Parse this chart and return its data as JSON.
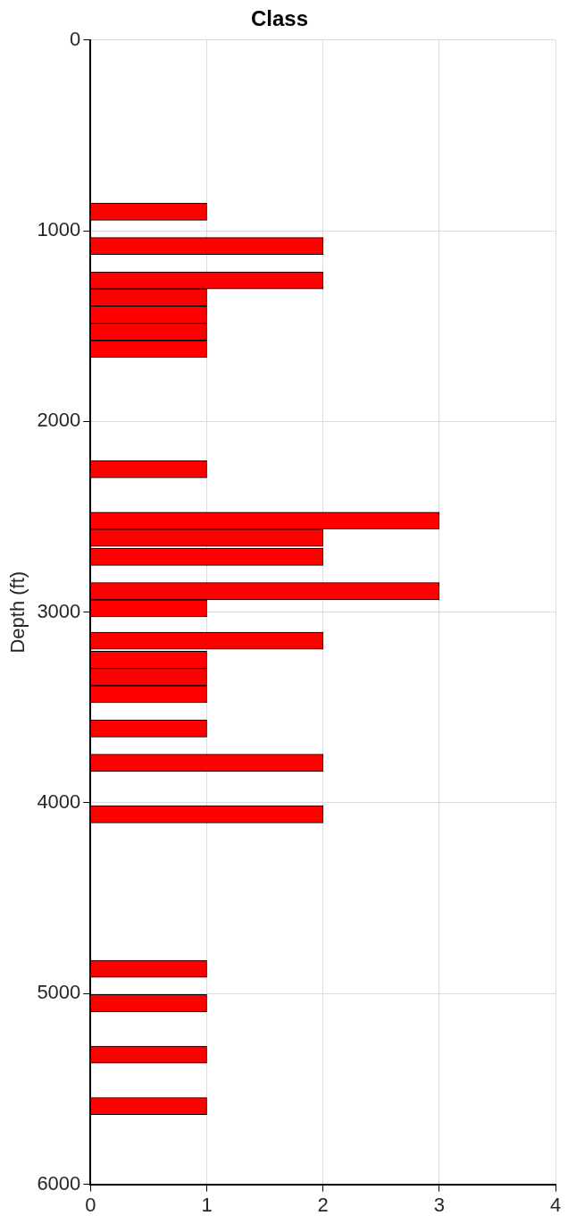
{
  "chart_data": {
    "type": "bar",
    "orientation": "horizontal",
    "title": "Class",
    "ylabel": "Depth (ft)",
    "x": [
      900,
      1080,
      1260,
      1350,
      1440,
      1530,
      1620,
      2250,
      2520,
      2610,
      2710,
      2890,
      2980,
      3150,
      3250,
      3340,
      3430,
      3610,
      3790,
      4060,
      4870,
      5050,
      5320,
      5590
    ],
    "series": [
      {
        "color": "#ff0000",
        "values": [
          1,
          2,
          2,
          1,
          1,
          1,
          1,
          1,
          3,
          2,
          2,
          3,
          1,
          2,
          1,
          1,
          1,
          1,
          2,
          2,
          1,
          1,
          1,
          1
        ]
      }
    ],
    "xlim": [
      0,
      4
    ],
    "xticks": [
      0,
      1,
      2,
      3,
      4
    ],
    "ylim": [
      6000,
      0
    ],
    "yticks": [
      0,
      1000,
      2000,
      3000,
      4000,
      5000,
      6000
    ],
    "grid": true,
    "legend": false
  }
}
